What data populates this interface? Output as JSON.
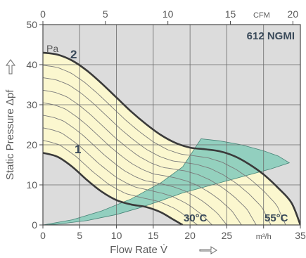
{
  "chart_data": {
    "type": "line",
    "title": "612 NGMI",
    "xlabel": "Flow Rate  V̇",
    "ylabel": "Static Pressure  Δpf",
    "x_unit": "m³/h",
    "y_unit": "Pa",
    "top_axis_unit": "CFM",
    "xlim": [
      0,
      35
    ],
    "ylim": [
      0,
      50
    ],
    "top_xlim": [
      0,
      20.6
    ],
    "x_ticks": [
      "0",
      "5",
      "10",
      "15",
      "20",
      "25",
      "m³/h",
      "35"
    ],
    "y_ticks": [
      "0",
      "10",
      "20",
      "30",
      "40",
      "50"
    ],
    "top_ticks": [
      "0",
      "5",
      "10",
      "15",
      "CFM",
      "20"
    ],
    "grid": true,
    "colors": {
      "plot_bg": "#dcdcdc",
      "fan_region": "#fbf7cf",
      "temp_region": "#8fcfbe",
      "curve": "#3a3a3a",
      "thin_curve": "#7a7a7a",
      "text": "#5a5a5a",
      "label": "#3a4a5a"
    },
    "series": [
      {
        "name": "2",
        "x": [
          0,
          2,
          4,
          6,
          8,
          10,
          12,
          14,
          16,
          18,
          20,
          22,
          24,
          26,
          28,
          30,
          32,
          33.8,
          35
        ],
        "y": [
          43,
          42.5,
          41,
          38.5,
          35.3,
          31.8,
          28.3,
          25.2,
          22.5,
          20.5,
          19.3,
          18.9,
          18.4,
          17.2,
          15.2,
          12.6,
          9.2,
          5.5,
          0
        ]
      },
      {
        "name": "1",
        "x": [
          0,
          2,
          4,
          6,
          8,
          10,
          12,
          14,
          16,
          17.5,
          19
        ],
        "y": [
          18,
          17,
          14.5,
          11.2,
          8.3,
          6.2,
          5.1,
          4.5,
          3.2,
          1.6,
          0
        ]
      }
    ],
    "annotations": [
      "30°C",
      "55°C"
    ]
  }
}
